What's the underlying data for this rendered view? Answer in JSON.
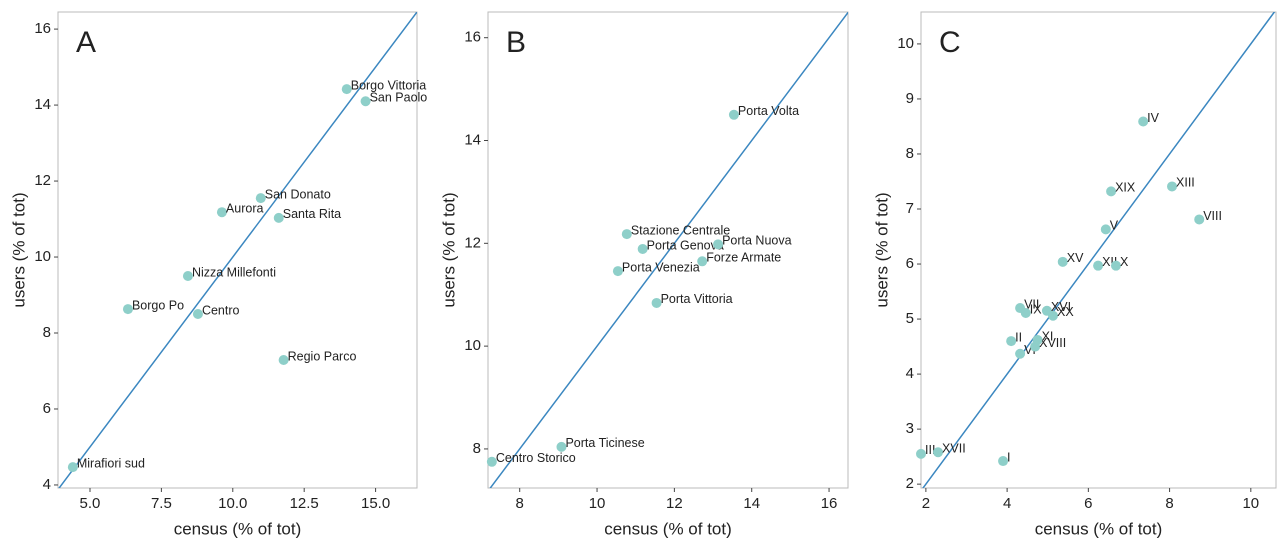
{
  "chart_data": [
    {
      "type": "scatter",
      "title": "A",
      "x_label": "census (% of tot)",
      "y_label": "users (% of tot)",
      "color": "#8ecfc9",
      "identity_line": true,
      "line_color": "#3b87c0",
      "grid": false,
      "xlim": [
        3.88,
        16.45
      ],
      "ylim": [
        3.92,
        16.45
      ],
      "xticks": [
        {
          "value": 5,
          "label": "5.0"
        },
        {
          "value": 7.5,
          "label": "7.5"
        },
        {
          "value": 10,
          "label": "10.0"
        },
        12.5,
        {
          "value": 15,
          "label": "15.0"
        }
      ],
      "yticks": [
        4,
        6,
        8,
        10,
        12,
        14,
        16
      ],
      "point_labels": [
        "Mirafiori sud",
        "Borgo Po",
        "Centro",
        "Nizza Millefonti",
        "Aurora",
        "San Donato",
        "Santa Rita",
        "Regio Parco",
        "Borgo Vittoria",
        "San Paolo"
      ],
      "x": [
        4.4,
        6.33,
        8.78,
        8.43,
        9.62,
        10.98,
        11.61,
        11.78,
        13.99,
        14.65
      ],
      "values": [
        4.47,
        8.63,
        8.5,
        9.5,
        11.18,
        11.55,
        11.03,
        7.29,
        14.42,
        14.1
      ]
    },
    {
      "type": "scatter",
      "title": "B",
      "x_label": "census (% of tot)",
      "y_label": "users (% of tot)",
      "color": "#8ecfc9",
      "identity_line": true,
      "line_color": "#3b87c0",
      "grid": false,
      "xlim": [
        7.18,
        16.49
      ],
      "ylim": [
        7.24,
        16.5
      ],
      "xticks": [
        8,
        10,
        12,
        14,
        16
      ],
      "yticks": [
        8,
        10,
        12,
        14,
        16
      ],
      "point_labels": [
        "Centro Storico",
        "Porta Ticinese",
        "Porta Vittoria",
        "Porta Venezia",
        "Stazione Centrale",
        "Porta Genova",
        "Porta Nuova",
        "Forze Armate",
        "Porta Volta"
      ],
      "x": [
        7.28,
        9.08,
        11.54,
        10.54,
        10.77,
        11.18,
        13.13,
        12.72,
        13.54
      ],
      "values": [
        7.75,
        8.04,
        10.84,
        11.46,
        12.18,
        11.89,
        11.98,
        11.65,
        14.5
      ]
    },
    {
      "type": "scatter",
      "title": "C",
      "x_label": "census (% of tot)",
      "y_label": "users (% of tot)",
      "color": "#8ecfc9",
      "identity_line": true,
      "line_color": "#3b87c0",
      "grid": false,
      "xlim": [
        1.88,
        10.62
      ],
      "ylim": [
        1.93,
        10.58
      ],
      "xticks": [
        2,
        4,
        6,
        8,
        10
      ],
      "yticks": [
        2,
        3,
        4,
        5,
        6,
        7,
        8,
        9,
        10
      ],
      "point_labels": [
        "III",
        "XVII",
        "I",
        "VI",
        "II",
        "XVIII",
        "XI",
        "VII",
        "IX",
        "XVI",
        "XX",
        "XV",
        "XII",
        "X",
        "V",
        "XIX",
        "IV",
        "XIII",
        "VIII"
      ],
      "x": [
        1.88,
        2.3,
        3.9,
        4.32,
        4.1,
        4.69,
        4.75,
        4.32,
        4.46,
        4.98,
        5.13,
        5.37,
        6.24,
        6.68,
        6.43,
        6.56,
        7.35,
        8.06,
        8.73
      ],
      "values": [
        2.55,
        2.58,
        2.42,
        4.37,
        4.6,
        4.5,
        4.62,
        5.2,
        5.11,
        5.15,
        5.06,
        6.04,
        5.97,
        5.97,
        6.63,
        7.32,
        8.59,
        7.41,
        6.81
      ]
    }
  ]
}
